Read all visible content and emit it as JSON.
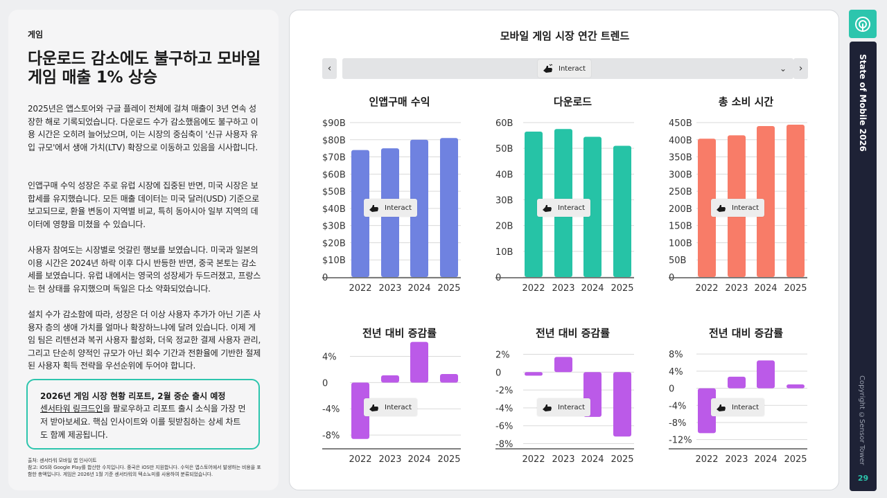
{
  "left": {
    "kicker": "게임",
    "headline": "다운로드 감소에도 불구하고 모바일 게임 매출 1% 상승",
    "paragraphs": [
      "2025년은 앱스토어와 구글 플레이 전체에 걸쳐 매출이 3년 연속 성장한 해로 기록되었습니다. 다운로드 수가 감소했음에도 불구하고 이용 시간은 오히려 늘어났으며, 이는 시장의 중심축이 '신규 사용자 유입 규모'에서 생애 가치(LTV) 확장으로 이동하고 있음을 시사합니다.",
      "인앱구매 수익 성장은 주로 유럽 시장에 집중된 반면, 미국 시장은 보합세를 유지했습니다. 모든 매출 데이터는 미국 달러(USD) 기준으로 보고되므로, 환율 변동이 지역별 비교, 특히 동아시아 일부 지역의 데이터에 영향을 미쳤을 수 있습니다.",
      "사용자 참여도는 시장별로 엇갈린 행보를 보였습니다. 미국과 일본의 이용 시간은 2024년 하락 이후 다시 반등한 반면, 중국 본토는 감소세를 보였습니다. 유럽 내에서는 영국의 성장세가 두드러졌고, 프랑스는 현 상태를 유지했으며 독일은 다소 약화되었습니다.",
      "설치 수가 감소함에 따라, 성장은 더 이상 사용자 추가가 아닌 기존 사용자 층의 생애 가치를 얼마나 확장하느냐에 달려 있습니다. 이제 게임 팀은 리텐션과 복귀 사용자 활성화, 더욱 정교한 결제 사용자 관리, 그리고 단순히 양적인 규모가 아닌 회수 기간과 전환율에 기반한 절제된 사용자 획득 전략을 우선순위에 두어야 합니다."
    ],
    "callout": {
      "title": "2026년 게임 시장 현황 리포트, 2월 중순 출시 예정",
      "link": "센서타워 링크드인",
      "body": "을 팔로우하고 리포트 출시 소식을 가장 먼저 받아보세요. 핵심 인사이트와 이를 뒷받침하는 상세 차트도 함께 제공됩니다."
    },
    "footnote_1": "출처: 센서타워 모바일 앱 인사이트",
    "footnote_2": "참고: iOS와 Google Play를 합산한 수치입니다. 중국은 iOS만 지원합니다. 수익은 앱스토어에서 발생하는 비용을 포함한 총액입니다. 게임은 2026년 1월 기준 센서타워의 텍소노미를 사용하여 분류되었습니다."
  },
  "panel": {
    "title": "모바일 게임 시장 연간 트렌드",
    "prev": "‹",
    "next": "›",
    "selector_label": "Interact",
    "chevron": "⌄",
    "interact_label": "Interact"
  },
  "rail": {
    "title": "State of Mobile 2026",
    "copyright": "Copyright ©Sensor Tower",
    "page": "29"
  },
  "colors": {
    "teal": "#2cc5ad",
    "navy": "#1e2236",
    "blue": "#6f82e0",
    "green": "#26c3a6",
    "salmon": "#f87c68",
    "purple": "#bb5ae8"
  },
  "icons": [
    "left-arrow-icon",
    "right-arrow-icon",
    "chevron-down-icon",
    "hand-pointer-icon",
    "sensor-tower-logo-icon"
  ],
  "chart_data": [
    {
      "type": "bar",
      "title": "인앱구매 수익",
      "categories": [
        "2022",
        "2023",
        "2024",
        "2025"
      ],
      "values": [
        74,
        75,
        80,
        81
      ],
      "ylim": [
        0,
        90
      ],
      "yticks": [
        0,
        10,
        20,
        30,
        40,
        50,
        60,
        70,
        80,
        90
      ],
      "ytick_labels": [
        "0",
        "$10B",
        "$20B",
        "$30B",
        "$40B",
        "$50B",
        "$60B",
        "$70B",
        "$80B",
        "$90B"
      ],
      "color": "#6f82e0",
      "grid": true
    },
    {
      "type": "bar",
      "title": "다운로드",
      "categories": [
        "2022",
        "2023",
        "2024",
        "2025"
      ],
      "values": [
        56.5,
        57.5,
        54.5,
        51
      ],
      "ylim": [
        0,
        60
      ],
      "yticks": [
        0,
        10,
        20,
        30,
        40,
        50,
        60
      ],
      "ytick_labels": [
        "0",
        "10B",
        "20B",
        "30B",
        "40B",
        "50B",
        "60B"
      ],
      "color": "#26c3a6",
      "grid": true
    },
    {
      "type": "bar",
      "title": "총 소비 시간",
      "categories": [
        "2022",
        "2023",
        "2024",
        "2025"
      ],
      "values": [
        403,
        413,
        440,
        444
      ],
      "ylim": [
        0,
        450
      ],
      "yticks": [
        0,
        50,
        100,
        150,
        200,
        250,
        300,
        350,
        400,
        450
      ],
      "ytick_labels": [
        "0",
        "50B",
        "100B",
        "150B",
        "200B",
        "250B",
        "300B",
        "350B",
        "400B",
        "450B"
      ],
      "color": "#f87c68",
      "grid": true
    },
    {
      "type": "bar",
      "title": "전년 대비 증감률",
      "categories": [
        "2022",
        "2023",
        "2024",
        "2025"
      ],
      "values": [
        -8.6,
        1.1,
        6.2,
        1.3
      ],
      "ylim": [
        -10,
        5
      ],
      "yticks": [
        -8,
        -4,
        0,
        4
      ],
      "ytick_labels": [
        "-8%",
        "-4%",
        "0",
        "4%"
      ],
      "color": "#bb5ae8",
      "grid": true
    },
    {
      "type": "bar",
      "title": "전년 대비 증감률",
      "categories": [
        "2022",
        "2023",
        "2024",
        "2025"
      ],
      "values": [
        -0.4,
        1.7,
        -5.0,
        -7.2
      ],
      "ylim": [
        -8.5,
        2.5
      ],
      "yticks": [
        -8,
        -6,
        -4,
        -2,
        0,
        2
      ],
      "ytick_labels": [
        "-8%",
        "-6%",
        "-4%",
        "-2%",
        "0",
        "2%"
      ],
      "color": "#bb5ae8",
      "grid": true
    },
    {
      "type": "bar",
      "title": "전년 대비 증감률",
      "categories": [
        "2022",
        "2023",
        "2024",
        "2025"
      ],
      "values": [
        -10.5,
        2.7,
        6.5,
        0.9
      ],
      "ylim": [
        -14,
        9
      ],
      "yticks": [
        -12,
        -8,
        -4,
        0,
        4,
        8
      ],
      "ytick_labels": [
        "-12%",
        "-8%",
        "-4%",
        "0",
        "4%",
        "8%"
      ],
      "color": "#bb5ae8",
      "grid": true
    }
  ]
}
